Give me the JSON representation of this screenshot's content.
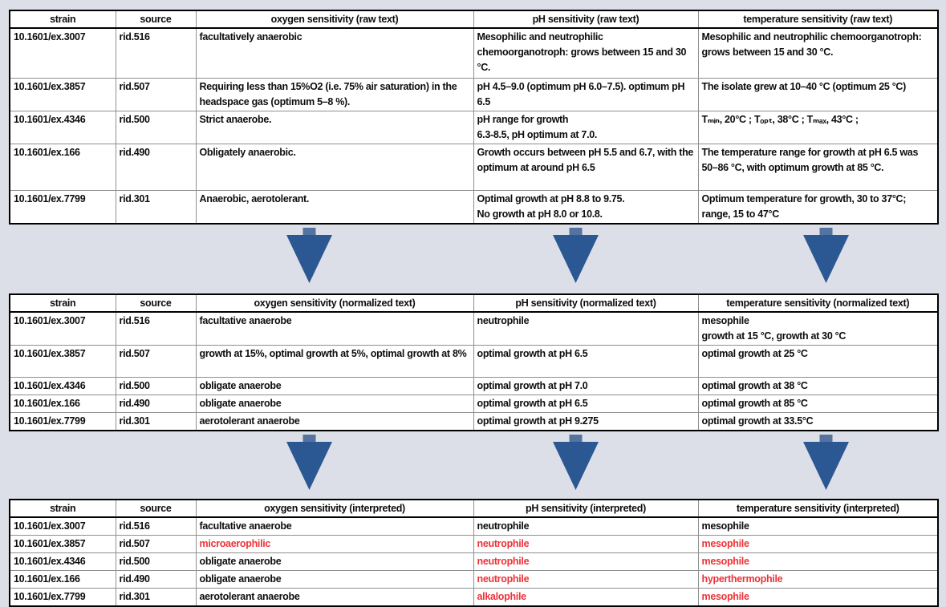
{
  "colors": {
    "page_background": "#dcdfe7",
    "table_background": "#ffffff",
    "text_black": "#0d0d0d",
    "text_red": "#ee3237",
    "arrow_triangle_blue": "#2b5793",
    "arrow_stem_blue": "#54749f"
  },
  "icons": {
    "down_arrow": "down-arrow-icon"
  },
  "tables": [
    {
      "name": "raw",
      "headers": [
        "strain",
        "source",
        "oxygen sensitivity (raw text)",
        "pH sensitivity (raw text)",
        "temperature sensitivity (raw text)"
      ],
      "rows": [
        [
          "10.1601/ex.3007",
          "rid.516",
          "facultatively anaerobic",
          "Mesophilic and neutrophilic chemoorganotroph: grows between 15 and 30 °C.",
          "Mesophilic and neutrophilic chemoorganotroph: grows between 15 and 30 °C."
        ],
        [
          "10.1601/ex.3857",
          "rid.507",
          "Requiring less than 15%O2 (i.e. 75% air saturation) in the headspace gas (optimum 5–8 %).",
          "pH 4.5–9.0 (optimum pH 6.0–7.5). optimum pH 6.5",
          "The isolate grew at 10–40 °C (optimum 25 °C)"
        ],
        [
          "10.1601/ex.4346",
          "rid.500",
          "Strict anaerobe.",
          "pH range for growth\n6.3-8.5, pH optimum at 7.0.",
          "Tₘᵢₙ, 20°C ; Tₒₚₜ, 38°C ; Tₘₐₓ, 43°C ;"
        ],
        [
          "10.1601/ex.166",
          "rid.490",
          "Obligately anaerobic.",
          "Growth occurs between pH 5.5 and 6.7, with the optimum at around pH 6.5",
          "The temperature range for growth at pH 6.5 was 50–86 °C, with optimum growth at 85 °C."
        ],
        [
          "10.1601/ex.7799",
          "rid.301",
          "Anaerobic, aerotolerant.",
          "Optimal growth at pH 8.8 to 9.75.\nNo growth at pH 8.0 or 10.8.",
          "Optimum temperature for growth, 30 to 37°C; range, 15 to 47°C"
        ]
      ]
    },
    {
      "name": "normalized",
      "headers": [
        "strain",
        "source",
        "oxygen sensitivity (normalized text)",
        "pH sensitivity (normalized text)",
        "temperature sensitivity (normalized text)"
      ],
      "rows": [
        [
          "10.1601/ex.3007",
          "rid.516",
          "facultative anaerobe",
          "neutrophile",
          "mesophile\ngrowth at 15 °C, growth at 30 °C"
        ],
        [
          "10.1601/ex.3857",
          "rid.507",
          "growth at 15%, optimal growth at 5%, optimal growth at 8%",
          "optimal growth at pH 6.5",
          "optimal growth at 25 °C"
        ],
        [
          "10.1601/ex.4346",
          "rid.500",
          "obligate anaerobe",
          "optimal growth at pH 7.0",
          "optimal growth at 38 °C"
        ],
        [
          "10.1601/ex.166",
          "rid.490",
          "obligate anaerobe",
          "optimal growth at pH 6.5",
          "optimal growth at 85 °C"
        ],
        [
          "10.1601/ex.7799",
          "rid.301",
          "aerotolerant anaerobe",
          "optimal growth at pH 9.275",
          "optimal growth at 33.5°C"
        ]
      ]
    },
    {
      "name": "interpreted",
      "headers": [
        "strain",
        "source",
        "oxygen sensitivity (interpreted)",
        "pH sensitivity (interpreted)",
        "temperature sensitivity (interpreted)"
      ],
      "rows": [
        [
          "10.1601/ex.3007",
          "rid.516",
          {
            "t": "facultative anaerobe"
          },
          {
            "t": "neutrophile"
          },
          {
            "t": "mesophile"
          }
        ],
        [
          "10.1601/ex.3857",
          "rid.507",
          {
            "t": "microaerophilic",
            "red": true
          },
          {
            "t": "neutrophile",
            "red": true
          },
          {
            "t": "mesophile",
            "red": true
          }
        ],
        [
          "10.1601/ex.4346",
          "rid.500",
          {
            "t": "obligate anaerobe"
          },
          {
            "t": "neutrophile",
            "red": true
          },
          {
            "t": "mesophile",
            "red": true
          }
        ],
        [
          "10.1601/ex.166",
          "rid.490",
          {
            "t": "obligate anaerobe"
          },
          {
            "t": "neutrophile",
            "red": true
          },
          {
            "t": "hyperthermophile",
            "red": true
          }
        ],
        [
          "10.1601/ex.7799",
          "rid.301",
          {
            "t": "aerotolerant anaerobe"
          },
          {
            "t": "alkalophile",
            "red": true
          },
          {
            "t": "mesophile",
            "red": true
          }
        ]
      ]
    }
  ]
}
